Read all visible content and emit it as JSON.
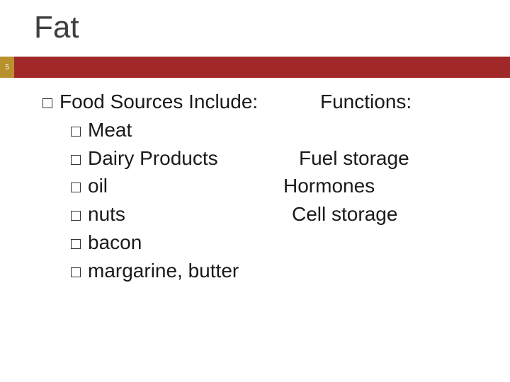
{
  "colors": {
    "accent_bar": "#a02828",
    "page_tab": "#b8912e",
    "text": "#1a1a1a",
    "title": "#3f3f3f",
    "background": "#ffffff"
  },
  "typography": {
    "title_fontsize": 44,
    "body_fontsize": 28,
    "font_family": "Arial"
  },
  "page_number": "5",
  "title": "Fat",
  "left": {
    "heading": "Food Sources Include:",
    "items": [
      "Meat",
      "Dairy Products",
      "oil",
      "nuts",
      "bacon",
      "margarine, butter"
    ]
  },
  "right": {
    "heading": "Functions:",
    "items": [
      "Fuel storage",
      "Hormones",
      "Cell storage"
    ]
  }
}
